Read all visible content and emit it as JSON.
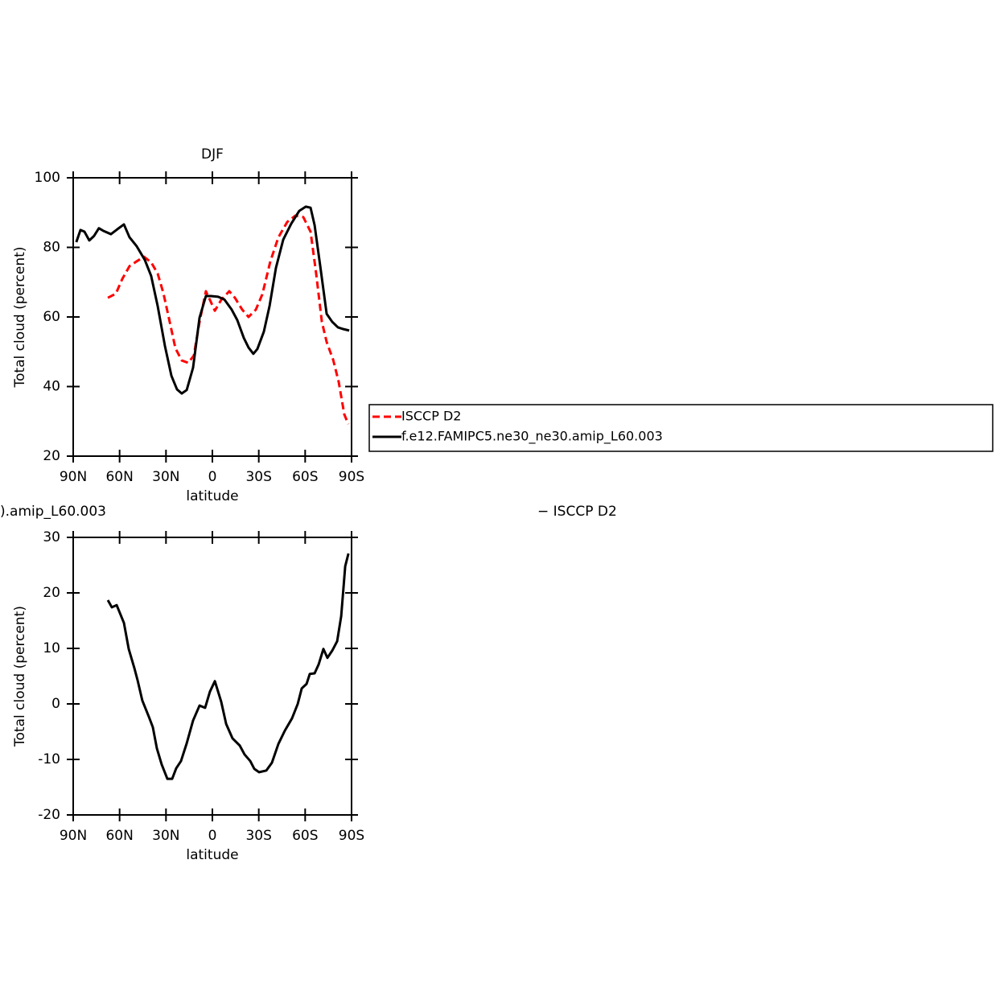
{
  "chart_data": [
    {
      "type": "line",
      "title": "DJF",
      "xlabel": "latitude",
      "ylabel": "Total cloud (percent)",
      "xlim": [
        90,
        -90
      ],
      "ylim": [
        20,
        100
      ],
      "xticks": [
        {
          "value": 90,
          "label": "90N"
        },
        {
          "value": 60,
          "label": "60N"
        },
        {
          "value": 30,
          "label": "30N"
        },
        0,
        {
          "value": -30,
          "label": "30S"
        },
        {
          "value": -60,
          "label": "60S"
        },
        {
          "value": -90,
          "label": "90S"
        }
      ],
      "yticks": [
        20,
        40,
        60,
        80,
        100
      ],
      "series": [
        {
          "name": "ISCCP D2",
          "color": "#ff0000",
          "dashed": true,
          "x": [
            67.6,
            62.4,
            58.3,
            53.6,
            48.9,
            44.2,
            39.6,
            35.4,
            31.7,
            27.6,
            23.9,
            19.8,
            15.6,
            12,
            8.3,
            4.2,
            1.6,
            -1.6,
            -5.7,
            -10.9,
            -14.6,
            -19.3,
            -23.4,
            -28.1,
            -32.3,
            -37.5,
            -42.7,
            -48.4,
            -53.6,
            -58.8,
            -63.5,
            -67.1,
            -70.8,
            -73.9,
            -78.1,
            -81.7,
            -85.3,
            -87.9
          ],
          "values": [
            65.5,
            66.7,
            70.9,
            74.6,
            76,
            77.3,
            75.7,
            72.5,
            66.9,
            58.6,
            51,
            47.5,
            46.8,
            48.9,
            58.6,
            67.4,
            64.9,
            61.8,
            64.9,
            67.4,
            65.5,
            62.1,
            60,
            62.1,
            66.5,
            76,
            82.9,
            87.3,
            89.1,
            88.7,
            84.5,
            72.5,
            58.6,
            52.8,
            47.7,
            41.3,
            32,
            29.2
          ]
        },
        {
          "name": "f.e12.FAMIPC5.ne30_ne30.amip_L60.003",
          "color": "#000000",
          "dashed": false,
          "x": [
            88,
            85.3,
            82.7,
            79.6,
            76.5,
            73.4,
            70.3,
            65.6,
            61.5,
            57.2,
            53.6,
            48.9,
            43.7,
            39.6,
            35.4,
            30.7,
            26.5,
            22.9,
            19.8,
            16.6,
            12.5,
            8.3,
            4.2,
            1,
            -3.7,
            -7.8,
            -12.5,
            -16.1,
            -20.3,
            -23.4,
            -26.5,
            -29.1,
            -33.3,
            -37,
            -41.1,
            -45.8,
            -51,
            -56.2,
            -60.4,
            -63.5,
            -66.1,
            -69.7,
            -73.9,
            -77.5,
            -81.2,
            -84.8,
            -88.5
          ],
          "values": [
            81.5,
            85,
            84.5,
            82,
            83.3,
            85.5,
            84.7,
            83.8,
            85.2,
            86.6,
            82.9,
            80.3,
            76.4,
            71.8,
            63.2,
            51.7,
            43.1,
            39.2,
            38,
            39,
            45.4,
            59.8,
            66,
            66,
            65.8,
            65,
            62.1,
            59.1,
            54,
            51.2,
            49.4,
            50.8,
            55.8,
            63.2,
            74.1,
            82.2,
            86.8,
            90.5,
            91.7,
            91.4,
            86.4,
            74.8,
            60.9,
            58.6,
            57,
            56.5,
            56.1
          ]
        }
      ]
    },
    {
      "type": "line",
      "title_left": ").amip_L60.003",
      "title_right": "− ISCCP D2",
      "xlabel": "latitude",
      "ylabel": "Total cloud (percent)",
      "xlim": [
        90,
        -90
      ],
      "ylim": [
        -20,
        30
      ],
      "xticks": [
        {
          "value": 90,
          "label": "90N"
        },
        {
          "value": 60,
          "label": "60N"
        },
        {
          "value": 30,
          "label": "30N"
        },
        0,
        {
          "value": -30,
          "label": "30S"
        },
        {
          "value": -60,
          "label": "60S"
        },
        {
          "value": -90,
          "label": "90S"
        }
      ],
      "yticks": [
        -20,
        -10,
        0,
        10,
        20,
        30
      ],
      "series": [
        {
          "color": "#000000",
          "dashed": false,
          "x": [
            67.6,
            65,
            61.9,
            57.2,
            54.1,
            50.5,
            48.4,
            45.3,
            41.1,
            38.5,
            35.9,
            32.8,
            29.1,
            26,
            23.4,
            20.3,
            16.6,
            12.5,
            8.3,
            4.7,
            1.6,
            -1.6,
            -5.7,
            -8.9,
            -13,
            -17.7,
            -20.8,
            -24.5,
            -27.1,
            -30.2,
            -34.9,
            -38.5,
            -42.7,
            -46.9,
            -51.5,
            -55.2,
            -57.8,
            -60.9,
            -63,
            -66.1,
            -68.7,
            -71.8,
            -74.4,
            -77.5,
            -80.7,
            -83.3,
            -85.9,
            -88
          ],
          "values": [
            18.7,
            17.4,
            17.8,
            14.6,
            9.9,
            6.5,
            4.3,
            0.6,
            -2.3,
            -4.2,
            -8,
            -10.9,
            -13.5,
            -13.5,
            -11.6,
            -10.3,
            -7.1,
            -3,
            -0.3,
            -0.7,
            2.2,
            4.1,
            0.4,
            -3.6,
            -6.2,
            -7.5,
            -9.1,
            -10.3,
            -11.7,
            -12.3,
            -12,
            -10.6,
            -7.2,
            -4.8,
            -2.6,
            0,
            2.8,
            3.6,
            5.4,
            5.5,
            7.1,
            9.9,
            8.3,
            9.6,
            11.3,
            15.8,
            24.8,
            27.1
          ]
        }
      ]
    }
  ]
}
